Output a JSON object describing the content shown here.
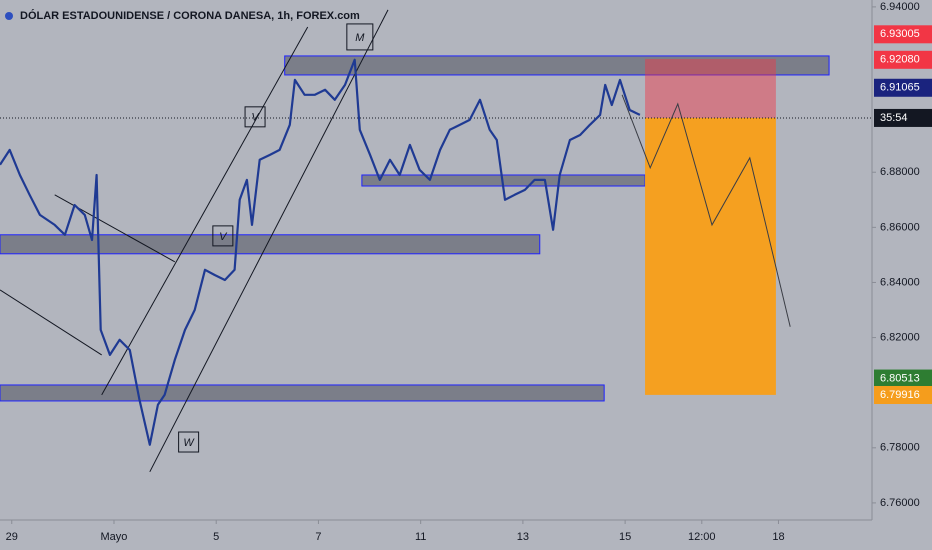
{
  "chart_data": {
    "type": "line",
    "title": "DÓLAR ESTADOUNIDENSE / CORONA DANESA, 1h, FOREX.com",
    "color": "#1f3a93",
    "x": [
      -0.23,
      -0.04,
      0.16,
      0.35,
      0.55,
      0.84,
      1.04,
      1.23,
      1.43,
      1.57,
      1.66,
      1.74,
      1.92,
      2.11,
      2.31,
      2.5,
      2.7,
      2.86,
      2.99,
      3.19,
      3.39,
      3.58,
      3.78,
      3.97,
      4.17,
      4.36,
      4.46,
      4.6,
      4.7,
      4.85,
      5.05,
      5.24,
      5.44,
      5.54,
      5.73,
      5.93,
      6.13,
      6.32,
      6.52,
      6.71,
      6.81,
      7.01,
      7.2,
      7.4,
      7.59,
      7.79,
      7.98,
      8.18,
      8.38,
      8.57,
      8.77,
      8.96,
      9.16,
      9.35,
      9.49,
      9.65,
      9.84,
      10.04,
      10.23,
      10.43,
      10.59,
      10.72,
      10.92,
      11.12,
      11.31,
      11.51,
      11.61,
      11.74,
      11.9,
      12.09,
      12.29
    ],
    "values": [
      6.8827,
      6.8881,
      6.879,
      6.8718,
      6.8645,
      6.8609,
      6.8573,
      6.8681,
      6.8645,
      6.8554,
      6.879,
      6.8228,
      6.8137,
      6.8192,
      6.8155,
      6.7974,
      6.7811,
      6.7956,
      6.7992,
      6.8119,
      6.8228,
      6.83,
      6.8446,
      6.8427,
      6.8409,
      6.8446,
      6.87,
      6.8772,
      6.8609,
      6.8845,
      6.8863,
      6.8881,
      6.8972,
      6.9135,
      6.9081,
      6.9081,
      6.9099,
      6.9063,
      6.9117,
      6.9208,
      6.8954,
      6.8863,
      6.8772,
      6.8845,
      6.879,
      6.8899,
      6.8809,
      6.8772,
      6.8881,
      6.8954,
      6.8972,
      6.899,
      6.9063,
      6.8954,
      6.8917,
      6.87,
      6.8718,
      6.8736,
      6.8772,
      6.8772,
      6.8591,
      6.879,
      6.8917,
      6.8935,
      6.8972,
      6.9008,
      6.9117,
      6.9044,
      6.9135,
      6.9026,
      6.9008
    ],
    "xlim": [
      -0.23,
      16.83
    ],
    "ylim": [
      6.7538,
      6.9425
    ],
    "xticks": [
      {
        "value": 0,
        "label": "29"
      },
      {
        "value": 2,
        "label": "Mayo"
      },
      {
        "value": 4,
        "label": "5"
      },
      {
        "value": 6,
        "label": "7"
      },
      {
        "value": 8,
        "label": "11"
      },
      {
        "value": 10,
        "label": "13"
      },
      {
        "value": 12,
        "label": "15"
      },
      {
        "value": 13.5,
        "label": "12:00"
      },
      {
        "value": 15,
        "label": "18"
      }
    ],
    "yticks": [
      {
        "value": 6.94,
        "label": "6.94000"
      },
      {
        "value": 6.88,
        "label": "6.88000"
      },
      {
        "value": 6.86,
        "label": "6.86000"
      },
      {
        "value": 6.84,
        "label": "6.84000"
      },
      {
        "value": 6.82,
        "label": "6.82000"
      },
      {
        "value": 6.78,
        "label": "6.78000"
      },
      {
        "value": 6.76,
        "label": "6.76000"
      }
    ],
    "grid": false,
    "zones": [
      {
        "x": [
          5.34,
          15.99
        ],
        "y": [
          6.9153,
          6.9222
        ]
      },
      {
        "x": [
          6.85,
          12.39
        ],
        "y": [
          6.875,
          6.879
        ]
      },
      {
        "x": [
          -0.23,
          10.33
        ],
        "y": [
          6.8504,
          6.8573
        ]
      },
      {
        "x": [
          -0.23,
          11.59
        ],
        "y": [
          6.797,
          6.8028
        ]
      }
    ],
    "position": {
      "x": [
        12.39,
        14.95
      ],
      "entry": 6.8997,
      "stop": 6.9211,
      "target": 6.7992
    },
    "projection": {
      "x": [
        11.94,
        12.49,
        13.03,
        13.7,
        14.44,
        15.23
      ],
      "values": [
        6.9081,
        6.8816,
        6.9048,
        6.8609,
        6.8852,
        6.8239
      ]
    },
    "trendlines": [
      {
        "x": [
          1.76,
          5.79
        ],
        "values": [
          6.7992,
          6.9327
        ]
      },
      {
        "x": [
          2.7,
          7.36
        ],
        "values": [
          6.7713,
          6.9389
        ]
      },
      {
        "x": [
          -0.23,
          1.76
        ],
        "values": [
          6.8373,
          6.8137
        ]
      },
      {
        "x": [
          0.84,
          3.19
        ],
        "values": [
          6.8718,
          6.8475
        ]
      }
    ],
    "annotations": [
      {
        "text": "M",
        "x": 6.81,
        "y": 6.9291
      },
      {
        "text": "V",
        "x": 4.76,
        "y": 6.9001
      },
      {
        "text": "V",
        "x": 4.13,
        "y": 6.8569
      },
      {
        "text": "W",
        "x": 3.46,
        "y": 6.7821
      }
    ],
    "current_price": 6.8997,
    "countdown": "35:54",
    "price_labels": [
      {
        "value": 6.93005,
        "label": "6.93005",
        "color": "#f23645"
      },
      {
        "value": 6.9208,
        "label": "6.92080",
        "color": "#f23645"
      },
      {
        "value": 6.91065,
        "label": "6.91065",
        "color": "#1a237e"
      },
      {
        "value": 6.80513,
        "label": "6.80513",
        "color": "#2e7d32"
      },
      {
        "value": 6.79916,
        "label": "6.79916",
        "color": "#f59d1c"
      }
    ]
  }
}
